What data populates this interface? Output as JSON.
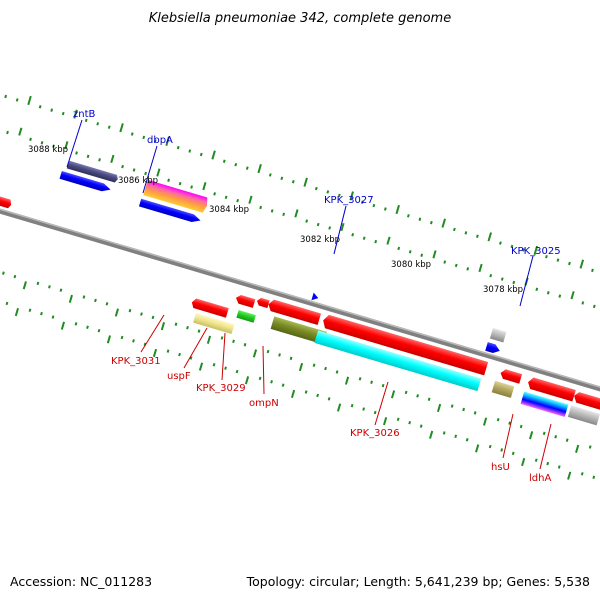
{
  "header": {
    "title": "Klebsiella pneumoniae 342, complete genome"
  },
  "footer": {
    "accession": "Accession: NC_011283",
    "topology": "Topology: circular; Length: 5,641,239 bp; Genes: 5,538"
  },
  "kbp_ticks": [
    "3088 kbp",
    "3086 kbp",
    "3084 kbp",
    "3082 kbp",
    "3080 kbp",
    "3078 kbp"
  ],
  "gene_labels_top": [
    "zntB",
    "dbpA",
    "KPK_3027",
    "KPK_3025"
  ],
  "gene_labels_bottom": [
    "KPK_3031",
    "uspF",
    "KPK_3029",
    "ompN",
    "KPK_3026",
    "hsU",
    "ldhA"
  ],
  "colors": {
    "backbone": "#888888",
    "forward_gene": "#0000ff",
    "reverse_gene": "#ff0000",
    "tick": "#228b22",
    "label_top": "#0000cc",
    "label_bottom": "#cc0000"
  }
}
